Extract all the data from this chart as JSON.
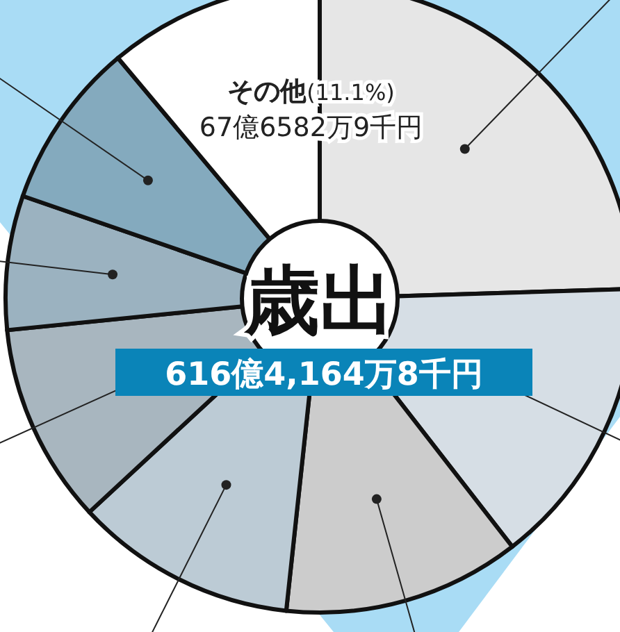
{
  "chart_data": {
    "type": "donut",
    "title": "歳出",
    "subtitle": "616億4,164万8千円",
    "categories": [
      null,
      null,
      null,
      null,
      null,
      null,
      null,
      "その他"
    ],
    "values": [
      24.5,
      15.0,
      12.2,
      11.4,
      10.3,
      6.9,
      8.6,
      11.1
    ],
    "value_labels": [
      null,
      null,
      null,
      null,
      null,
      null,
      null,
      "(11.1%)"
    ],
    "colors": [
      "#e6e6e6",
      "#d6dee5",
      "#cccccc",
      "#bccbd5",
      "#a8b6bf",
      "#9bb2c0",
      "#84aabe",
      "#ffffff"
    ],
    "annotations": [
      "67億6582万9千円"
    ]
  }
}
